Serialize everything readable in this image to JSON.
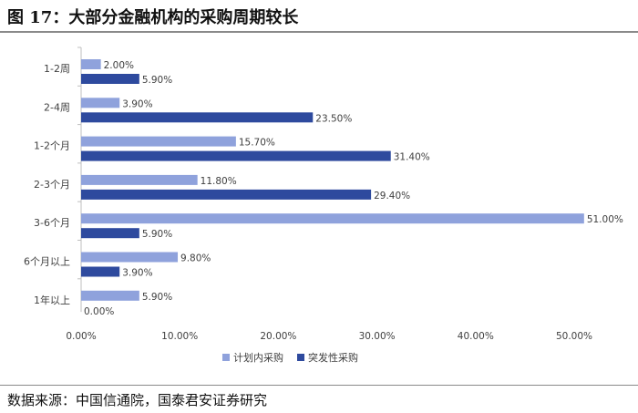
{
  "figure": {
    "title": "图 17：大部分金融机构的采购周期较长",
    "source": "数据来源：中国信通院，国泰君安证券研究"
  },
  "colors": {
    "planned": "#8fa2dc",
    "unplanned": "#2e4a9e",
    "axis": "#bfbfbf",
    "text": "#404040"
  },
  "chart_data": {
    "type": "bar",
    "orientation": "horizontal",
    "categories": [
      "1-2周",
      "2-4周",
      "1-2个月",
      "2-3个月",
      "3-6个月",
      "6个月以上",
      "1年以上"
    ],
    "series": [
      {
        "name": "计划内采购",
        "values": [
          2.0,
          3.9,
          15.7,
          11.8,
          51.0,
          9.8,
          5.9
        ],
        "labels": [
          "2.00%",
          "3.90%",
          "15.70%",
          "11.80%",
          "51.00%",
          "9.80%",
          "5.90%"
        ]
      },
      {
        "name": "突发性采购",
        "values": [
          5.9,
          23.5,
          31.4,
          29.4,
          5.9,
          3.9,
          0.0
        ],
        "labels": [
          "5.90%",
          "23.50%",
          "31.40%",
          "29.40%",
          "5.90%",
          "3.90%",
          "0.00%"
        ]
      }
    ],
    "xlim": [
      0,
      50
    ],
    "xticks": [
      0,
      10,
      20,
      30,
      40,
      50
    ],
    "xtick_labels": [
      "0.00%",
      "10.00%",
      "20.00%",
      "30.00%",
      "40.00%",
      "50.00%"
    ],
    "legend_position": "bottom",
    "grid": false
  }
}
